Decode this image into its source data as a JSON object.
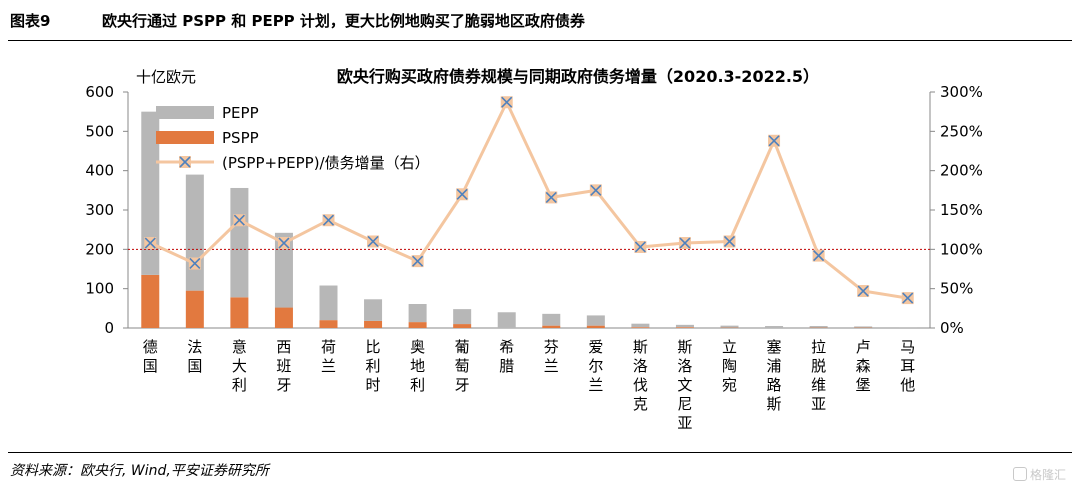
{
  "figure": {
    "number": "图表9",
    "title": "欧央行通过 PSPP 和 PEPP 计划，更大比例地购买了脆弱地区政府债券"
  },
  "footer": {
    "source": "资料来源：欧央行, Wind,平安证券研究所",
    "watermark": "格隆汇"
  },
  "chart_data": {
    "type": "bar",
    "stacked": true,
    "title": "欧央行购买政府债券规模与同期政府债务增量（2020.3-2022.5）",
    "ylabel_left": "十亿欧元",
    "categories": [
      "德国",
      "法国",
      "意大利",
      "西班牙",
      "荷兰",
      "比利时",
      "奥地利",
      "葡萄牙",
      "希腊",
      "芬兰",
      "爱尔兰",
      "斯洛伐克",
      "斯洛文尼亚",
      "立陶宛",
      "塞浦路斯",
      "拉脱维亚",
      "卢森堡",
      "马耳他"
    ],
    "series": [
      {
        "name": "PSPP",
        "type": "bar",
        "axis": "left",
        "color": "#e2793f",
        "values": [
          135,
          95,
          78,
          52,
          20,
          18,
          15,
          10,
          0,
          6,
          6,
          2,
          2,
          1,
          0,
          1,
          1,
          0
        ]
      },
      {
        "name": "PEPP",
        "type": "bar",
        "axis": "left",
        "color": "#b7b7b7",
        "values": [
          415,
          295,
          278,
          190,
          88,
          55,
          46,
          38,
          40,
          30,
          26,
          9,
          6,
          5,
          5,
          4,
          3,
          2
        ]
      },
      {
        "name": "(PSPP+PEPP)/债务增量（右）",
        "type": "line",
        "axis": "right",
        "color": "#f4c6a0",
        "values": [
          108,
          82,
          137,
          108,
          137,
          110,
          85,
          170,
          287,
          166,
          175,
          103,
          108,
          110,
          238,
          92,
          47,
          38
        ]
      }
    ],
    "reference_line": {
      "axis": "right",
      "value": 100,
      "color": "#c00000",
      "style": "dotted"
    },
    "ylim_left": [
      0,
      600
    ],
    "yticks_left": [
      "0",
      "100",
      "200",
      "300",
      "400",
      "500",
      "600"
    ],
    "ylim_right": [
      0,
      300
    ],
    "yticks_right": [
      "0%",
      "50%",
      "100%",
      "150%",
      "200%",
      "250%",
      "300%"
    ],
    "legend": {
      "position": "top-left",
      "entries": [
        "PEPP",
        "PSPP",
        "(PSPP+PEPP)/债务增量（右）"
      ]
    },
    "grid": false
  }
}
